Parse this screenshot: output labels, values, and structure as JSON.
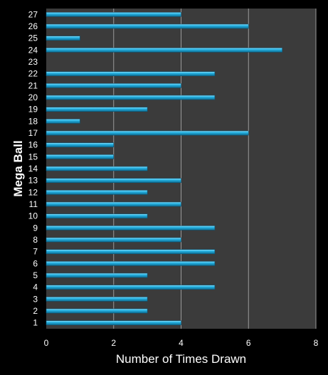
{
  "chart_data": {
    "type": "bar",
    "orientation": "horizontal",
    "title": "",
    "xlabel": "Number of Times Drawn",
    "ylabel": "Mega Ball",
    "categories": [
      "1",
      "2",
      "3",
      "4",
      "5",
      "6",
      "7",
      "8",
      "9",
      "10",
      "11",
      "12",
      "13",
      "14",
      "15",
      "16",
      "17",
      "18",
      "19",
      "20",
      "21",
      "22",
      "23",
      "24",
      "25",
      "26",
      "27"
    ],
    "values": [
      4,
      3,
      3,
      5,
      3,
      5,
      5,
      4,
      5,
      3,
      4,
      3,
      4,
      3,
      2,
      2,
      6,
      1,
      3,
      5,
      4,
      5,
      0,
      7,
      1,
      6,
      4
    ],
    "xlim": [
      0,
      8
    ],
    "xticks": [
      "0",
      "2",
      "4",
      "6",
      "8"
    ],
    "grid": "vertical",
    "legend": "none",
    "colors": {
      "background": "#000000",
      "plot_area": "#3b3b3b",
      "gridline": "#9a9a9a",
      "bar": "#27b5e6",
      "bar_highlight": "#9fe4fb",
      "bar_shadow": "#0d6f95",
      "text": "#ffffff"
    }
  }
}
